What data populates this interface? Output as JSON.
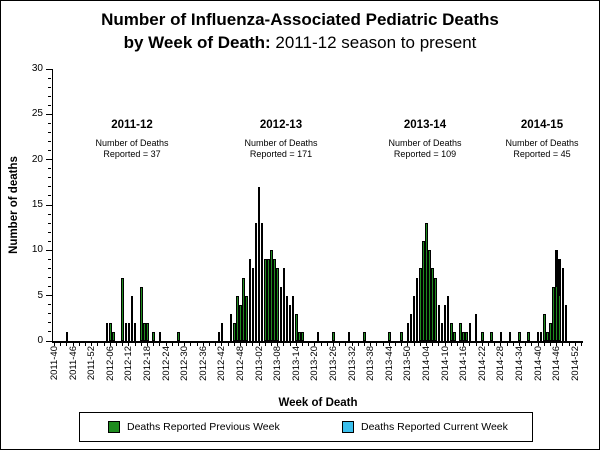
{
  "title": {
    "line1": "Number of Influenza-Associated Pediatric Deaths",
    "line2_bold": "by Week of Death:",
    "line2_rest": " 2011-12 season to present"
  },
  "y_axis": {
    "label": "Number of deaths",
    "min": 0,
    "max": 30,
    "tick_step": 5,
    "ticks": [
      0,
      5,
      10,
      15,
      20,
      25,
      30
    ]
  },
  "x_axis": {
    "label": "Week of Death",
    "tick_labels": [
      "2011-40",
      "2011-46",
      "2011-52",
      "2012-06",
      "2012-12",
      "2012-18",
      "2012-24",
      "2012-30",
      "2012-36",
      "2012-42",
      "2012-48",
      "2013-02",
      "2013-08",
      "2013-14",
      "2013-20",
      "2013-26",
      "2013-32",
      "2013-38",
      "2013-44",
      "2013-50",
      "2014-04",
      "2014-10",
      "2014-16",
      "2014-22",
      "2014-28",
      "2014-34",
      "2014-40",
      "2014-46",
      "2014-52"
    ]
  },
  "annotations": [
    {
      "label": "2011-12",
      "note_line1": "Number of Deaths",
      "note_line2": "Reported = 37"
    },
    {
      "label": "2012-13",
      "note_line1": "Number of Deaths",
      "note_line2": "Reported = 171"
    },
    {
      "label": "2013-14",
      "note_line1": "Number of Deaths",
      "note_line2": "Reported = 109"
    },
    {
      "label": "2014-15",
      "note_line1": "Number of Deaths",
      "note_line2": "Reported = 45"
    }
  ],
  "legend": {
    "items": [
      {
        "label": "Deaths Reported Previous Week",
        "color": "#1f8b1f"
      },
      {
        "label": "Deaths Reported Current Week",
        "color": "#3bbfec"
      }
    ]
  },
  "chart_data": {
    "type": "bar",
    "stacked": true,
    "title": "Number of Influenza-Associated Pediatric Deaths by Week of Death: 2011-12 season to present",
    "xlabel": "Week of Death",
    "ylabel": "Number of deaths",
    "ylim": [
      0,
      30
    ],
    "x_start_week": "2011-40",
    "x_end_week": "2015-02",
    "grid": false,
    "legend_position": "bottom",
    "colors": {
      "previous": "#1f8b1f",
      "current": "#3bbfec"
    },
    "season_totals": {
      "2011-12": 37,
      "2012-13": 171,
      "2013-14": 109,
      "2014-15": 45
    },
    "bars": [
      {
        "week": "2011-44",
        "previous": 1
      },
      {
        "week": "2012-05",
        "previous": 2
      },
      {
        "week": "2012-06",
        "previous": 2
      },
      {
        "week": "2012-07",
        "previous": 1
      },
      {
        "week": "2012-10",
        "previous": 7
      },
      {
        "week": "2012-11",
        "previous": 2
      },
      {
        "week": "2012-12",
        "previous": 2
      },
      {
        "week": "2012-13",
        "previous": 5
      },
      {
        "week": "2012-14",
        "previous": 2
      },
      {
        "week": "2012-16",
        "previous": 6
      },
      {
        "week": "2012-17",
        "previous": 2
      },
      {
        "week": "2012-18",
        "previous": 2
      },
      {
        "week": "2012-20",
        "previous": 1
      },
      {
        "week": "2012-22",
        "previous": 1
      },
      {
        "week": "2012-28",
        "previous": 1
      },
      {
        "week": "2012-41",
        "previous": 1
      },
      {
        "week": "2012-42",
        "previous": 2
      },
      {
        "week": "2012-45",
        "previous": 3
      },
      {
        "week": "2012-46",
        "previous": 2
      },
      {
        "week": "2012-47",
        "previous": 5
      },
      {
        "week": "2012-48",
        "previous": 4
      },
      {
        "week": "2012-49",
        "previous": 7
      },
      {
        "week": "2012-50",
        "previous": 5
      },
      {
        "week": "2012-51",
        "previous": 9
      },
      {
        "week": "2012-52",
        "previous": 8
      },
      {
        "week": "2013-01",
        "previous": 13
      },
      {
        "week": "2013-02",
        "previous": 17
      },
      {
        "week": "2013-03",
        "previous": 13
      },
      {
        "week": "2013-04",
        "previous": 9
      },
      {
        "week": "2013-05",
        "previous": 9
      },
      {
        "week": "2013-06",
        "previous": 10
      },
      {
        "week": "2013-07",
        "previous": 9
      },
      {
        "week": "2013-08",
        "previous": 8
      },
      {
        "week": "2013-09",
        "previous": 6
      },
      {
        "week": "2013-10",
        "previous": 8
      },
      {
        "week": "2013-11",
        "previous": 5
      },
      {
        "week": "2013-12",
        "previous": 4
      },
      {
        "week": "2013-13",
        "previous": 5
      },
      {
        "week": "2013-14",
        "previous": 3
      },
      {
        "week": "2013-15",
        "previous": 1
      },
      {
        "week": "2013-16",
        "previous": 1
      },
      {
        "week": "2013-21",
        "previous": 1
      },
      {
        "week": "2013-26",
        "previous": 1
      },
      {
        "week": "2013-31",
        "previous": 1
      },
      {
        "week": "2013-36",
        "previous": 1
      },
      {
        "week": "2013-44",
        "previous": 1
      },
      {
        "week": "2013-48",
        "previous": 1
      },
      {
        "week": "2013-50",
        "previous": 2
      },
      {
        "week": "2013-51",
        "previous": 3
      },
      {
        "week": "2013-52",
        "previous": 5
      },
      {
        "week": "2014-01",
        "previous": 7
      },
      {
        "week": "2014-02",
        "previous": 8
      },
      {
        "week": "2014-03",
        "previous": 11
      },
      {
        "week": "2014-04",
        "previous": 13
      },
      {
        "week": "2014-05",
        "previous": 10
      },
      {
        "week": "2014-06",
        "previous": 8
      },
      {
        "week": "2014-07",
        "previous": 7
      },
      {
        "week": "2014-08",
        "previous": 4
      },
      {
        "week": "2014-09",
        "previous": 2
      },
      {
        "week": "2014-10",
        "previous": 4
      },
      {
        "week": "2014-11",
        "previous": 5
      },
      {
        "week": "2014-12",
        "previous": 2
      },
      {
        "week": "2014-13",
        "previous": 1
      },
      {
        "week": "2014-15",
        "previous": 2
      },
      {
        "week": "2014-16",
        "previous": 1
      },
      {
        "week": "2014-17",
        "previous": 1
      },
      {
        "week": "2014-18",
        "previous": 2
      },
      {
        "week": "2014-20",
        "previous": 3
      },
      {
        "week": "2014-22",
        "previous": 1
      },
      {
        "week": "2014-25",
        "previous": 1
      },
      {
        "week": "2014-28",
        "previous": 1
      },
      {
        "week": "2014-31",
        "previous": 1
      },
      {
        "week": "2014-34",
        "previous": 1
      },
      {
        "week": "2014-37",
        "previous": 1
      },
      {
        "week": "2014-40",
        "previous": 1
      },
      {
        "week": "2014-41",
        "previous": 1
      },
      {
        "week": "2014-42",
        "previous": 3
      },
      {
        "week": "2014-43",
        "previous": 1
      },
      {
        "week": "2014-44",
        "previous": 2
      },
      {
        "week": "2014-45",
        "previous": 6
      },
      {
        "week": "2014-46",
        "previous": 6,
        "current": 4
      },
      {
        "week": "2014-47",
        "previous": 5,
        "current": 4
      },
      {
        "week": "2014-48",
        "previous": 5,
        "current": 3
      },
      {
        "week": "2014-49",
        "previous": 0,
        "current": 4
      }
    ]
  }
}
